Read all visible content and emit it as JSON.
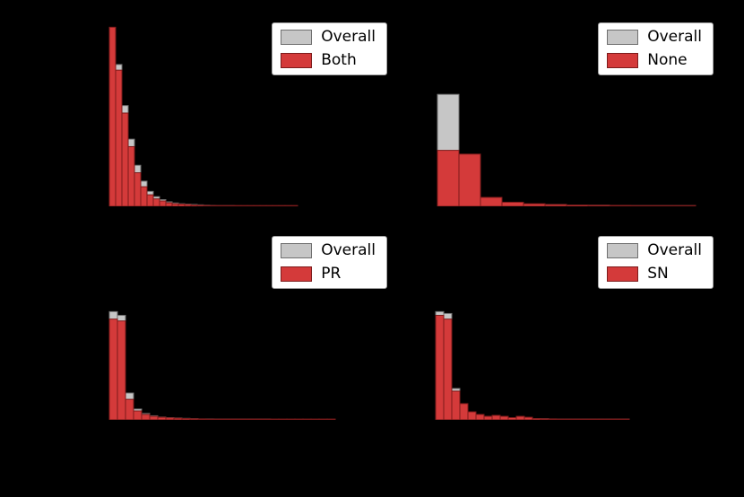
{
  "page": {
    "background": "#000000"
  },
  "colors": {
    "overall_fill": "#c6c6c6",
    "overall_edge": "#6f6f6f",
    "red_fill": "#d43a3a",
    "red_edge": "#7d1b1b",
    "legend_bg": "#ffffff",
    "legend_border": "#a3a3a3",
    "legend_text": "#000000"
  },
  "chart_data": [
    {
      "type": "bar",
      "subtype": "histogram",
      "panel": "top-left",
      "x0": 18,
      "bin_width": 7,
      "ylim": [
        0,
        1
      ],
      "grid": false,
      "legend": {
        "position": "upper-right",
        "entries": [
          {
            "label": "Overall",
            "color_key": "overall"
          },
          {
            "label": "Both",
            "color_key": "red"
          }
        ]
      },
      "series": [
        {
          "name": "Overall",
          "values": [
            0.94,
            0.76,
            0.54,
            0.36,
            0.22,
            0.135,
            0.08,
            0.052,
            0.036,
            0.024,
            0.018,
            0.014,
            0.012,
            0.01,
            0.008,
            0.006,
            0.005,
            0.004,
            0.004,
            0.003
          ]
        },
        {
          "name": "Both",
          "values": [
            0.96,
            0.73,
            0.5,
            0.32,
            0.18,
            0.105,
            0.062,
            0.04,
            0.029,
            0.019,
            0.014,
            0.012,
            0.01,
            0.007,
            0.006,
            0.005,
            0.004,
            0.004,
            0.003,
            0.003,
            0.002,
            0.002,
            0.002,
            0.002,
            0.002,
            0.002,
            0.002,
            0.002,
            0.002,
            0.002
          ]
        }
      ]
    },
    {
      "type": "bar",
      "subtype": "histogram",
      "panel": "top-right",
      "x0": 20,
      "bin_width": 24,
      "ylim": [
        0,
        1
      ],
      "grid": false,
      "legend": {
        "position": "upper-right",
        "entries": [
          {
            "label": "Overall",
            "color_key": "overall"
          },
          {
            "label": "None",
            "color_key": "red"
          }
        ]
      },
      "series": [
        {
          "name": "Overall",
          "values": [
            0.6,
            0.144,
            0.043,
            0.019,
            0.012,
            0.01,
            0.007,
            0.006,
            0.005,
            0.004,
            0.004,
            0.003
          ]
        },
        {
          "name": "None",
          "values": [
            0.3,
            0.28,
            0.048,
            0.022,
            0.014,
            0.01,
            0.007,
            0.006,
            0.005,
            0.004,
            0.004,
            0.003
          ]
        }
      ]
    },
    {
      "type": "bar",
      "subtype": "histogram",
      "panel": "bottom-left",
      "x0": 18,
      "bin_width": 9,
      "ylim": [
        0,
        1
      ],
      "grid": false,
      "legend": {
        "position": "upper-right",
        "entries": [
          {
            "label": "Overall",
            "color_key": "overall"
          },
          {
            "label": "PR",
            "color_key": "red"
          }
        ]
      },
      "series": [
        {
          "name": "Overall",
          "values": [
            0.58,
            0.56,
            0.144,
            0.058,
            0.034,
            0.022,
            0.015,
            0.012,
            0.01,
            0.008,
            0.006,
            0.005,
            0.005,
            0.004,
            0.004,
            0.003,
            0.003,
            0.003,
            0.002,
            0.002
          ]
        },
        {
          "name": "PR",
          "values": [
            0.54,
            0.53,
            0.11,
            0.048,
            0.029,
            0.019,
            0.014,
            0.011,
            0.009,
            0.007,
            0.006,
            0.005,
            0.004,
            0.004,
            0.004,
            0.003,
            0.003,
            0.003,
            0.003,
            0.002,
            0.002,
            0.002,
            0.002,
            0.002,
            0.002,
            0.002,
            0.002,
            0.002
          ]
        }
      ]
    },
    {
      "type": "bar",
      "subtype": "histogram",
      "panel": "bottom-right",
      "x0": 18,
      "bin_width": 9,
      "ylim": [
        0,
        1
      ],
      "grid": false,
      "legend": {
        "position": "upper-right",
        "entries": [
          {
            "label": "Overall",
            "color_key": "overall"
          },
          {
            "label": "SN",
            "color_key": "red"
          }
        ]
      },
      "series": [
        {
          "name": "Overall",
          "values": [
            0.58,
            0.57,
            0.168,
            0.072,
            0.038,
            0.024,
            0.019,
            0.019,
            0.014,
            0.012,
            0.014,
            0.012,
            0.007,
            0.006,
            0.005,
            0.004,
            0.004,
            0.003,
            0.003,
            0.003,
            0.002,
            0.002,
            0.002,
            0.002
          ]
        },
        {
          "name": "SN",
          "values": [
            0.56,
            0.54,
            0.154,
            0.087,
            0.043,
            0.029,
            0.019,
            0.024,
            0.019,
            0.012,
            0.019,
            0.014,
            0.007,
            0.006,
            0.005,
            0.004,
            0.004,
            0.003,
            0.003,
            0.003,
            0.002,
            0.002,
            0.002,
            0.002
          ]
        }
      ]
    }
  ]
}
